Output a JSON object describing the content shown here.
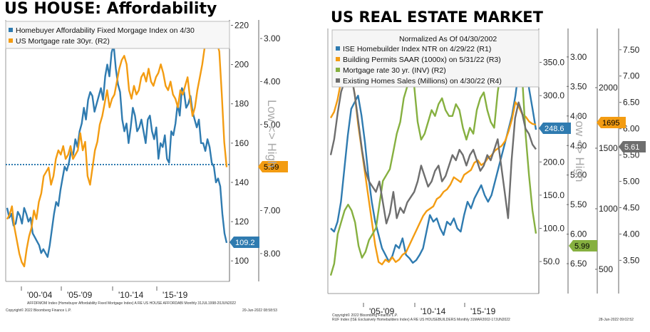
{
  "left_title": "US HOUSE: Affordability",
  "right_title": "US REAL ESTATE MARKET",
  "left_rot_label": "Low <> High",
  "right_rot_label": "Low <> High",
  "left_footer": "AFFDFMOM Index (Homebuyer Affordability Fixed Mortgage Index) A RE US HOUSE AFFORDABI  Monthly 31JUL1998-20JUN2022",
  "left_copyright": "Copyright© 2022 Bloomberg Finance L.P.",
  "left_timestamp": "20-Jun-2022 08:58:53",
  "right_footer": "RUF Index (ISE Exclusively Homebuilders Index) A RE US HOUSEBUILDERS  Monthly 31MAR2002-17JUN2022",
  "right_copyright": "Copyright© 2022 Bloomberg Finance L.P.",
  "right_timestamp": "28-Jun-2022 09:02:52",
  "colors": {
    "blue": "#2f7bb0",
    "orange": "#f39c12",
    "green": "#86b040",
    "gray": "#6e6e6e"
  },
  "chart_data": [
    {
      "type": "line",
      "title": "US HOUSE: Affordability",
      "xlabel": "",
      "ylabel": "Low <> High",
      "x_ticks": [
        "'00-'04",
        "'05-'09",
        "'10-'14",
        "'15-'19"
      ],
      "y_left_ticks": [
        "220",
        "200",
        "180",
        "160",
        "140",
        "120",
        "100"
      ],
      "y_left_range": [
        95,
        222
      ],
      "y_right_ticks": [
        "3.00",
        "4.00",
        "5.00",
        "6.00",
        "7.00",
        "8.00"
      ],
      "y_right_range": [
        2.6,
        8.4
      ],
      "y_right_inverted": true,
      "legend": "top-left",
      "threshold_line": {
        "style": "dashed",
        "color": "#2f7bb0"
      },
      "series": [
        {
          "name": "Homebuyer Affordability Fixed Morgage Index on 4/30",
          "axis": "left",
          "color": "#2f7bb0",
          "values": [
            127,
            122,
            124,
            118,
            119,
            125,
            123,
            119,
            127,
            124,
            120,
            122,
            114,
            112,
            110,
            108,
            104,
            106,
            104,
            102,
            108,
            116,
            124,
            130,
            128,
            136,
            142,
            148,
            146,
            150,
            156,
            154,
            162,
            158,
            166,
            170,
            178,
            172,
            182,
            186,
            184,
            176,
            180,
            184,
            188,
            182,
            194,
            200,
            194,
            206,
            210,
            198,
            190,
            186,
            172,
            166,
            170,
            160,
            168,
            178,
            174,
            166,
            168,
            172,
            166,
            160,
            172,
            174,
            166,
            162,
            168,
            152,
            160,
            158,
            164,
            152,
            150,
            166,
            164,
            170,
            180,
            174,
            188,
            186,
            178,
            180,
            184,
            176,
            172,
            168,
            172,
            160,
            160,
            156,
            162,
            158,
            150,
            148,
            140,
            142,
            138,
            124,
            114,
            109.2
          ],
          "last_value": "109.2"
        },
        {
          "name": "US Mortgage rate 30yr. (R2)",
          "axis": "right",
          "color": "#f39c12",
          "values": [
            7.2,
            7.1,
            6.9,
            7.4,
            7.7,
            8.0,
            8.2,
            8.3,
            7.9,
            7.6,
            7.4,
            7.0,
            7.2,
            6.8,
            6.6,
            6.2,
            6.1,
            6.0,
            6.4,
            6.2,
            5.8,
            5.6,
            5.7,
            5.5,
            5.8,
            5.7,
            5.5,
            5.8,
            5.7,
            5.6,
            5.2,
            5.6,
            5.4,
            6.2,
            6.4,
            6.0,
            5.6,
            5.4,
            5.0,
            4.8,
            4.5,
            4.2,
            4.6,
            4.4,
            4.3,
            4.0,
            3.7,
            3.5,
            3.4,
            3.6,
            4.2,
            4.4,
            4.1,
            4.3,
            4.2,
            3.9,
            3.8,
            4.0,
            3.7,
            4.0,
            4.1,
            3.9,
            3.8,
            3.6,
            3.8,
            4.1,
            4.2,
            4.0,
            4.3,
            4.4,
            4.6,
            4.2,
            4.3,
            4.1,
            3.9,
            4.4,
            4.8,
            4.6,
            4.2,
            3.9,
            3.6,
            3.2,
            3.0,
            3.0,
            3.1,
            3.0,
            3.1,
            3.3,
            4.3,
            5.4,
            5.99
          ],
          "last_value": "5.99"
        }
      ]
    },
    {
      "type": "line",
      "title": "US REAL ESTATE MARKET",
      "subtitle": "Normalized As Of 04/30/2002",
      "ylabel": "Low <> High",
      "x_ticks": [
        "'05-'09",
        "'10-'14",
        "'15-'19"
      ],
      "axes": {
        "R1": {
          "ticks": [
            "350.0",
            "300.0",
            "250.0",
            "200.0",
            "150.0",
            "100.0",
            "50.0"
          ],
          "range": [
            20,
            385
          ]
        },
        "R2": {
          "ticks": [
            "3.00",
            "3.50",
            "4.00",
            "4.50",
            "5.00",
            "5.50",
            "6.00",
            "6.50"
          ],
          "range": [
            2.7,
            6.8
          ],
          "inverted": true
        },
        "R3": {
          "ticks": [
            "2000",
            "1500",
            "1000",
            "500"
          ],
          "range": [
            400,
            2400
          ]
        },
        "R4": {
          "ticks": [
            "7.50",
            "7.00",
            "6.50",
            "6.00",
            "5.50",
            "5.00",
            "4.50",
            "4.00",
            "3.50"
          ],
          "range": [
            3.1,
            7.7
          ]
        }
      },
      "legend": "top",
      "series": [
        {
          "name": "ISE Homebuilder Index NTR on 4/29/22 (R1)",
          "axis": "R1",
          "color": "#2f7bb0",
          "values": [
            100,
            95,
            110,
            140,
            190,
            240,
            280,
            290,
            300,
            270,
            230,
            180,
            140,
            110,
            90,
            70,
            60,
            50,
            58,
            75,
            70,
            85,
            60,
            55,
            48,
            52,
            60,
            70,
            95,
            120,
            110,
            115,
            100,
            90,
            110,
            105,
            115,
            100,
            95,
            120,
            140,
            130,
            145,
            155,
            165,
            150,
            140,
            150,
            170,
            190,
            210,
            230,
            250,
            270,
            300,
            340,
            330,
            360,
            310,
            280,
            248.6
          ],
          "last_value": "248.6"
        },
        {
          "name": "Building Permits SAAR (1000x) on 5/31/22 (R3)",
          "axis": "R3",
          "color": "#f39c12",
          "values": [
            1750,
            1800,
            1900,
            2050,
            2150,
            2200,
            2100,
            1950,
            1700,
            1500,
            1300,
            1100,
            900,
            700,
            560,
            540,
            580,
            560,
            600,
            560,
            580,
            620,
            640,
            700,
            760,
            820,
            880,
            940,
            980,
            1000,
            1020,
            1080,
            1100,
            1140,
            1160,
            1200,
            1260,
            1240,
            1220,
            1280,
            1300,
            1320,
            1380,
            1400,
            1360,
            1380,
            1420,
            1440,
            1480,
            1500,
            1520,
            1560,
            1640,
            1740,
            1880,
            1840,
            1780,
            1760,
            1720,
            1700,
            1695
          ],
          "last_value": "1695"
        },
        {
          "name": "Mortgage rate 30 yr. (INV) (R2)",
          "axis": "R2",
          "color": "#86b040",
          "values": [
            6.7,
            6.5,
            6.0,
            5.8,
            5.6,
            5.5,
            5.6,
            5.8,
            6.2,
            6.4,
            6.3,
            6.1,
            6.0,
            5.9,
            5.5,
            5.1,
            5.0,
            4.9,
            4.6,
            4.3,
            4.1,
            3.7,
            3.5,
            3.4,
            3.5,
            4.1,
            4.4,
            4.3,
            4.1,
            3.9,
            4.0,
            3.8,
            3.7,
            3.9,
            4.0,
            4.0,
            3.8,
            3.9,
            4.2,
            4.4,
            4.2,
            4.3,
            3.9,
            3.7,
            3.6,
            3.9,
            4.1,
            4.2,
            3.6,
            3.2,
            2.9,
            2.8,
            3.0,
            3.1,
            3.0,
            3.3,
            4.3,
            5.0,
            5.6,
            5.99
          ],
          "last_value": "5.99"
        },
        {
          "name": "Existing Homes Sales (Millions) on 4/30/22 (R4)",
          "axis": "R4",
          "color": "#6e6e6e",
          "values": [
            5.5,
            5.8,
            6.3,
            6.7,
            6.9,
            7.2,
            7.0,
            6.6,
            6.1,
            5.6,
            5.2,
            5.0,
            4.9,
            4.8,
            5.0,
            4.6,
            4.2,
            4.4,
            4.8,
            4.3,
            4.5,
            4.4,
            4.6,
            4.7,
            4.8,
            5.0,
            5.3,
            5.1,
            4.9,
            5.0,
            5.2,
            5.3,
            5.0,
            5.1,
            5.3,
            5.5,
            5.4,
            5.6,
            5.5,
            5.3,
            5.5,
            5.6,
            5.4,
            5.2,
            5.3,
            5.5,
            5.4,
            5.6,
            5.8,
            5.3,
            4.8,
            4.3,
            5.4,
            6.2,
            6.5,
            6.3,
            6.0,
            5.9,
            5.7,
            5.61
          ],
          "last_value": "5.61"
        }
      ]
    }
  ]
}
